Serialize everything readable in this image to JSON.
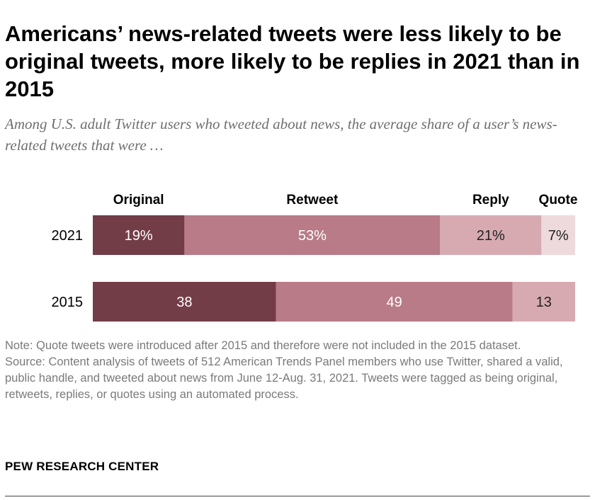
{
  "title": "Americans’ news-related tweets were less likely to be original tweets, more likely to be replies in 2021 than in 2015",
  "subtitle": "Among U.S. adult Twitter users who tweeted about news, the average share of a user’s news-related tweets that were …",
  "chart_data": {
    "type": "bar",
    "orientation": "horizontal",
    "stacked": true,
    "categories": [
      "2021",
      "2015"
    ],
    "series": [
      {
        "name": "Original",
        "values": [
          19,
          38
        ],
        "labels": [
          "19%",
          "38"
        ],
        "color": "#733d47",
        "label_color": "#ffffff"
      },
      {
        "name": "Retweet",
        "values": [
          53,
          49
        ],
        "labels": [
          "53%",
          "49"
        ],
        "color": "#b87b87",
        "label_color": "#ffffff"
      },
      {
        "name": "Reply",
        "values": [
          21,
          13
        ],
        "labels": [
          "21%",
          "13"
        ],
        "color": "#d7aab2",
        "label_color": "#222222"
      },
      {
        "name": "Quote",
        "values": [
          7,
          null
        ],
        "labels": [
          "7%",
          ""
        ],
        "color": "#eed9dd",
        "label_color": "#222222"
      }
    ],
    "xlim": [
      0,
      100
    ],
    "unit": "%",
    "legend_position": "top"
  },
  "note": "Note: Quote tweets were introduced after 2015 and therefore were not included in the 2015 dataset.",
  "source": "Source: Content analysis of tweets of 512 American Trends Panel members who use Twitter, shared a valid, public handle, and tweeted about news from June 12-Aug. 31, 2021. Tweets were tagged as being original, retweets, replies, or quotes using an automated process.",
  "brand": "PEW RESEARCH CENTER"
}
